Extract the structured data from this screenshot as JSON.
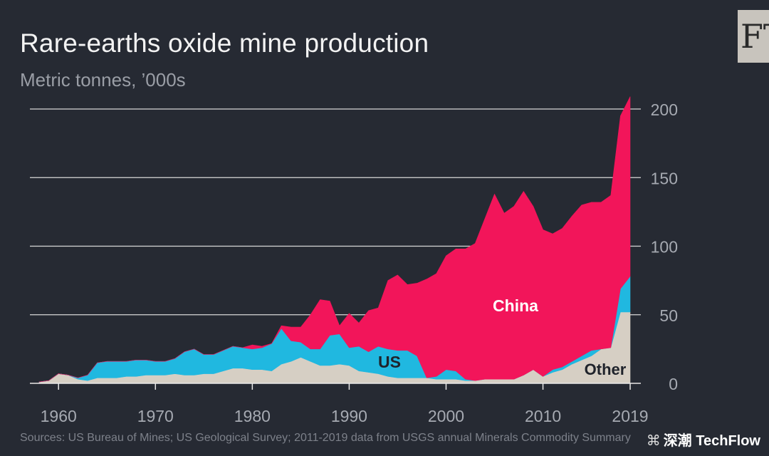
{
  "title": "Rare-earths oxide mine production",
  "subtitle": "Metric tonnes, ’000s",
  "logo_text": "FT",
  "source": "Sources: US Bureau of Mines; US Geological Survey; 2011-2019 data from USGS annual Minerals Commodity Summary",
  "watermark": "深潮 TechFlow",
  "colors": {
    "background": "#262a33",
    "china": "#f2155a",
    "us": "#20b8e0",
    "other": "#d6cfc4",
    "gridline": "#d8d8d8"
  },
  "chart_data": {
    "type": "area",
    "stacked": true,
    "title": "Rare-earths oxide mine production",
    "ylabel": "Metric tonnes, ’000s",
    "xlabel": "",
    "xlim": [
      1958,
      2019
    ],
    "ylim": [
      0,
      200
    ],
    "yticks": [
      0,
      50,
      100,
      150,
      200
    ],
    "xtick_labels": [
      "1960",
      "1970",
      "1980",
      "1990",
      "2000",
      "2010",
      "2019"
    ],
    "grid": true,
    "x": [
      1958,
      1959,
      1960,
      1961,
      1962,
      1963,
      1964,
      1965,
      1966,
      1967,
      1968,
      1969,
      1970,
      1971,
      1972,
      1973,
      1974,
      1975,
      1976,
      1977,
      1978,
      1979,
      1980,
      1981,
      1982,
      1983,
      1984,
      1985,
      1986,
      1987,
      1988,
      1989,
      1990,
      1991,
      1992,
      1993,
      1994,
      1995,
      1996,
      1997,
      1998,
      1999,
      2000,
      2001,
      2002,
      2003,
      2004,
      2005,
      2006,
      2007,
      2008,
      2009,
      2010,
      2011,
      2012,
      2013,
      2014,
      2015,
      2016,
      2017,
      2018,
      2019
    ],
    "series": [
      {
        "name": "Other",
        "label": "Other",
        "values": [
          1,
          2,
          7,
          6,
          3,
          2,
          4,
          4,
          4,
          5,
          5,
          6,
          6,
          6,
          7,
          6,
          6,
          7,
          7,
          9,
          11,
          11,
          10,
          10,
          9,
          14,
          16,
          19,
          16,
          13,
          13,
          14,
          13,
          9,
          8,
          7,
          5,
          4,
          4,
          4,
          4,
          3,
          3,
          3,
          2,
          2,
          3,
          3,
          3,
          3,
          6,
          10,
          5,
          8,
          10,
          14,
          17,
          20,
          25,
          26,
          52,
          52
        ]
      },
      {
        "name": "US",
        "label": "US",
        "values": [
          0,
          0,
          0,
          0,
          1,
          4,
          11,
          12,
          12,
          11,
          12,
          11,
          10,
          10,
          11,
          17,
          19,
          14,
          14,
          15,
          16,
          15,
          15,
          16,
          20,
          26,
          15,
          11,
          9,
          12,
          22,
          22,
          13,
          18,
          15,
          20,
          20,
          20,
          20,
          16,
          0,
          2,
          7,
          6,
          1,
          0,
          0,
          0,
          0,
          0,
          0,
          0,
          0,
          2,
          2,
          2,
          3,
          4,
          0,
          0,
          17,
          26
        ]
      },
      {
        "name": "China",
        "label": "China",
        "values": [
          0,
          0,
          0,
          0,
          0,
          0,
          0,
          0,
          0,
          0,
          0,
          0,
          0,
          0,
          0,
          0,
          0,
          0,
          0,
          0,
          0,
          0,
          3,
          1,
          0,
          2,
          10,
          11,
          25,
          36,
          25,
          6,
          25,
          17,
          30,
          28,
          50,
          55,
          48,
          53,
          72,
          75,
          83,
          89,
          95,
          100,
          117,
          135,
          121,
          126,
          134,
          119,
          107,
          99,
          101,
          106,
          110,
          108,
          107,
          111,
          126,
          131
        ]
      }
    ]
  }
}
